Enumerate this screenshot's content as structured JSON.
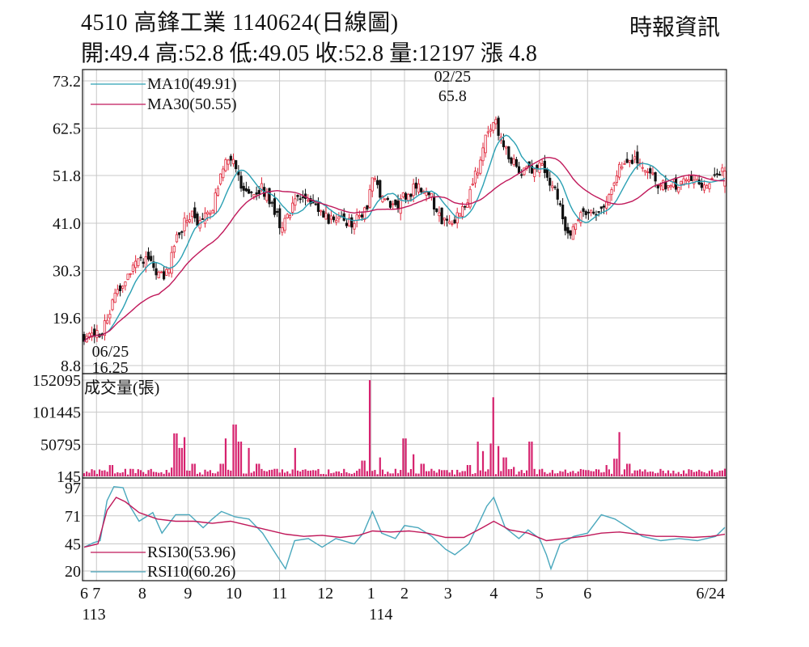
{
  "header": {
    "title": "4510  高鋒工業 1140624(日線圖)",
    "source": "時報資訊",
    "ohlc": "開:49.4 高:52.8 低:49.05 收:52.8 量:12197 漲 4.8"
  },
  "colors": {
    "up": "#e0263a",
    "down": "#111111",
    "ma10": "#2aa0b3",
    "ma30": "#c0185a",
    "volume": "#d6226e",
    "rsi30": "#c0185a",
    "rsi10": "#4aa8bd",
    "grid": "#c8c8c8"
  },
  "chart_data": [
    {
      "type": "candlestick",
      "panel": "price",
      "ylim": [
        8.8,
        73.2
      ],
      "yticks": [
        "73.2",
        "62.5",
        "51.8",
        "41.0",
        "30.3",
        "19.6",
        "8.8"
      ],
      "legend": [
        {
          "label": "MA10(49.91)",
          "color": "#2aa0b3"
        },
        {
          "label": "MA30(50.55)",
          "color": "#c0185a"
        }
      ],
      "annotations": [
        {
          "date": "02/25",
          "value": "65.8",
          "position": "above",
          "month_index": 8.05
        },
        {
          "date": "06/25",
          "value": "16.25",
          "position": "below",
          "month_index": 0.1
        }
      ],
      "anchors": [
        [
          0.0,
          15.5
        ],
        [
          0.4,
          16.6
        ],
        [
          0.7,
          25.5
        ],
        [
          1.0,
          30.5
        ],
        [
          1.2,
          33.5
        ],
        [
          1.45,
          32.5
        ],
        [
          1.6,
          28.5
        ],
        [
          1.8,
          30.0
        ],
        [
          2.05,
          38.5
        ],
        [
          2.3,
          43.0
        ],
        [
          2.55,
          41.0
        ],
        [
          2.8,
          44.5
        ],
        [
          3.0,
          53.5
        ],
        [
          3.2,
          56.5
        ],
        [
          3.4,
          50.0
        ],
        [
          3.6,
          48.0
        ],
        [
          3.9,
          49.0
        ],
        [
          4.1,
          45.0
        ],
        [
          4.3,
          40.5
        ],
        [
          4.5,
          44.0
        ],
        [
          4.7,
          47.0
        ],
        [
          5.0,
          44.5
        ],
        [
          5.3,
          42.0
        ],
        [
          5.6,
          41.5
        ],
        [
          5.9,
          41.0
        ],
        [
          6.15,
          43.5
        ],
        [
          6.3,
          51.5
        ],
        [
          6.5,
          47.0
        ],
        [
          6.8,
          44.5
        ],
        [
          7.0,
          47.0
        ],
        [
          7.3,
          49.5
        ],
        [
          7.55,
          47.5
        ],
        [
          7.8,
          41.5
        ],
        [
          8.0,
          41.0
        ],
        [
          8.3,
          44.0
        ],
        [
          8.6,
          53.5
        ],
        [
          8.75,
          60.0
        ],
        [
          8.95,
          64.5
        ],
        [
          9.2,
          58.0
        ],
        [
          9.45,
          53.5
        ],
        [
          9.7,
          52.5
        ],
        [
          9.95,
          54.5
        ],
        [
          10.2,
          49.5
        ],
        [
          10.4,
          46.0
        ],
        [
          10.55,
          37.5
        ],
        [
          10.75,
          42.0
        ],
        [
          11.0,
          43.0
        ],
        [
          11.3,
          44.5
        ],
        [
          11.5,
          48.0
        ],
        [
          11.7,
          54.5
        ],
        [
          11.9,
          56.0
        ],
        [
          12.1,
          54.5
        ],
        [
          12.3,
          52.5
        ],
        [
          12.55,
          50.0
        ],
        [
          12.8,
          49.0
        ],
        [
          13.05,
          49.5
        ],
        [
          13.3,
          51.0
        ],
        [
          13.55,
          50.0
        ],
        [
          13.8,
          51.0
        ],
        [
          14.0,
          52.8
        ]
      ]
    },
    {
      "type": "bar",
      "panel": "volume",
      "title": "成交量(張)",
      "ylim": [
        145,
        152095
      ],
      "yticks": [
        "152095",
        "101445",
        "50795",
        "145"
      ],
      "spikes": [
        [
          0.0,
          4000
        ],
        [
          0.4,
          6000
        ],
        [
          0.6,
          18000
        ],
        [
          1.0,
          12000
        ],
        [
          1.4,
          8000
        ],
        [
          1.9,
          14000
        ],
        [
          2.0,
          68000
        ],
        [
          2.1,
          45000
        ],
        [
          2.2,
          62000
        ],
        [
          2.4,
          20000
        ],
        [
          3.0,
          20000
        ],
        [
          3.1,
          60000
        ],
        [
          3.3,
          82000
        ],
        [
          3.4,
          55000
        ],
        [
          3.6,
          45000
        ],
        [
          3.8,
          20000
        ],
        [
          4.2,
          12000
        ],
        [
          4.6,
          45000
        ],
        [
          5.0,
          10000
        ],
        [
          5.5,
          8000
        ],
        [
          6.0,
          12000
        ],
        [
          6.1,
          25000
        ],
        [
          6.25,
          152095
        ],
        [
          6.45,
          30000
        ],
        [
          6.8,
          12000
        ],
        [
          7.0,
          60000
        ],
        [
          7.2,
          35000
        ],
        [
          7.4,
          20000
        ],
        [
          7.6,
          12000
        ],
        [
          7.9,
          10000
        ],
        [
          8.4,
          18000
        ],
        [
          8.6,
          55000
        ],
        [
          8.7,
          40000
        ],
        [
          8.9,
          52000
        ],
        [
          8.95,
          125000
        ],
        [
          9.05,
          48000
        ],
        [
          9.2,
          30000
        ],
        [
          9.4,
          15000
        ],
        [
          9.75,
          55000
        ],
        [
          10.0,
          12000
        ],
        [
          10.5,
          8000
        ],
        [
          11.0,
          10000
        ],
        [
          11.4,
          18000
        ],
        [
          11.6,
          28000
        ],
        [
          11.7,
          70000
        ],
        [
          11.9,
          20000
        ],
        [
          12.2,
          8000
        ],
        [
          12.6,
          6000
        ],
        [
          13.0,
          7000
        ],
        [
          13.5,
          8000
        ],
        [
          13.9,
          9000
        ],
        [
          14.0,
          12197
        ]
      ]
    },
    {
      "type": "line",
      "panel": "rsi",
      "ylim": [
        20,
        97
      ],
      "yticks": [
        "97",
        "71",
        "45",
        "20"
      ],
      "legend": [
        {
          "label": "RSI30(53.96)",
          "color": "#c0185a"
        },
        {
          "label": "RSI10(60.26)",
          "color": "#4aa8bd"
        }
      ],
      "series": [
        {
          "name": "RSI10(60.26)",
          "points": [
            [
              0.0,
              42
            ],
            [
              0.2,
              46
            ],
            [
              0.35,
              48
            ],
            [
              0.5,
              85
            ],
            [
              0.65,
              98
            ],
            [
              0.85,
              97
            ],
            [
              1.0,
              80
            ],
            [
              1.2,
              66
            ],
            [
              1.5,
              74
            ],
            [
              1.7,
              55
            ],
            [
              2.0,
              72
            ],
            [
              2.3,
              72
            ],
            [
              2.6,
              60
            ],
            [
              2.8,
              68
            ],
            [
              3.0,
              75
            ],
            [
              3.3,
              70
            ],
            [
              3.6,
              68
            ],
            [
              3.9,
              55
            ],
            [
              4.2,
              35
            ],
            [
              4.4,
              22
            ],
            [
              4.6,
              48
            ],
            [
              4.9,
              50
            ],
            [
              5.2,
              42
            ],
            [
              5.5,
              50
            ],
            [
              5.9,
              45
            ],
            [
              6.1,
              55
            ],
            [
              6.3,
              75
            ],
            [
              6.5,
              55
            ],
            [
              6.8,
              50
            ],
            [
              7.0,
              62
            ],
            [
              7.3,
              60
            ],
            [
              7.6,
              52
            ],
            [
              7.9,
              40
            ],
            [
              8.1,
              35
            ],
            [
              8.4,
              45
            ],
            [
              8.6,
              62
            ],
            [
              8.8,
              80
            ],
            [
              8.95,
              88
            ],
            [
              9.2,
              60
            ],
            [
              9.5,
              50
            ],
            [
              9.7,
              58
            ],
            [
              9.95,
              50
            ],
            [
              10.1,
              35
            ],
            [
              10.2,
              22
            ],
            [
              10.4,
              45
            ],
            [
              10.7,
              52
            ],
            [
              11.0,
              55
            ],
            [
              11.3,
              72
            ],
            [
              11.6,
              68
            ],
            [
              11.9,
              60
            ],
            [
              12.2,
              52
            ],
            [
              12.6,
              48
            ],
            [
              13.0,
              50
            ],
            [
              13.4,
              48
            ],
            [
              13.8,
              52
            ],
            [
              14.0,
              60.26
            ]
          ]
        },
        {
          "name": "RSI30(53.96)",
          "points": [
            [
              0.0,
              42
            ],
            [
              0.3,
              45
            ],
            [
              0.5,
              76
            ],
            [
              0.7,
              88
            ],
            [
              0.9,
              84
            ],
            [
              1.2,
              74
            ],
            [
              1.6,
              68
            ],
            [
              2.0,
              66
            ],
            [
              2.4,
              66
            ],
            [
              2.8,
              64
            ],
            [
              3.2,
              66
            ],
            [
              3.6,
              62
            ],
            [
              4.0,
              58
            ],
            [
              4.4,
              54
            ],
            [
              4.8,
              52
            ],
            [
              5.2,
              53
            ],
            [
              5.6,
              51
            ],
            [
              6.0,
              53
            ],
            [
              6.3,
              57
            ],
            [
              6.7,
              56
            ],
            [
              7.1,
              57
            ],
            [
              7.5,
              55
            ],
            [
              7.9,
              51
            ],
            [
              8.3,
              51
            ],
            [
              8.7,
              60
            ],
            [
              8.95,
              66
            ],
            [
              9.3,
              58
            ],
            [
              9.7,
              55
            ],
            [
              10.1,
              48
            ],
            [
              10.5,
              50
            ],
            [
              10.9,
              52
            ],
            [
              11.3,
              55
            ],
            [
              11.7,
              56
            ],
            [
              12.1,
              54
            ],
            [
              12.5,
              52
            ],
            [
              12.9,
              52
            ],
            [
              13.3,
              51
            ],
            [
              13.7,
              52
            ],
            [
              14.0,
              53.96
            ]
          ]
        }
      ]
    }
  ],
  "xaxis": {
    "months": [
      {
        "label": "6",
        "pos": 0.0
      },
      {
        "label": "7",
        "pos": 0.27
      },
      {
        "label": "8",
        "pos": 1.27
      },
      {
        "label": "9",
        "pos": 2.27
      },
      {
        "label": "10",
        "pos": 3.27
      },
      {
        "label": "11",
        "pos": 4.27
      },
      {
        "label": "12",
        "pos": 5.27
      },
      {
        "label": "1",
        "pos": 6.27
      },
      {
        "label": "2",
        "pos": 7.0
      },
      {
        "label": "3",
        "pos": 7.95
      },
      {
        "label": "4",
        "pos": 8.95
      },
      {
        "label": "5",
        "pos": 9.95
      },
      {
        "label": "6",
        "pos": 11.0
      },
      {
        "label": "6/24",
        "pos": 14.0
      }
    ],
    "years": [
      {
        "label": "113",
        "pos": 0.0
      },
      {
        "label": "114",
        "pos": 6.27
      }
    ]
  }
}
